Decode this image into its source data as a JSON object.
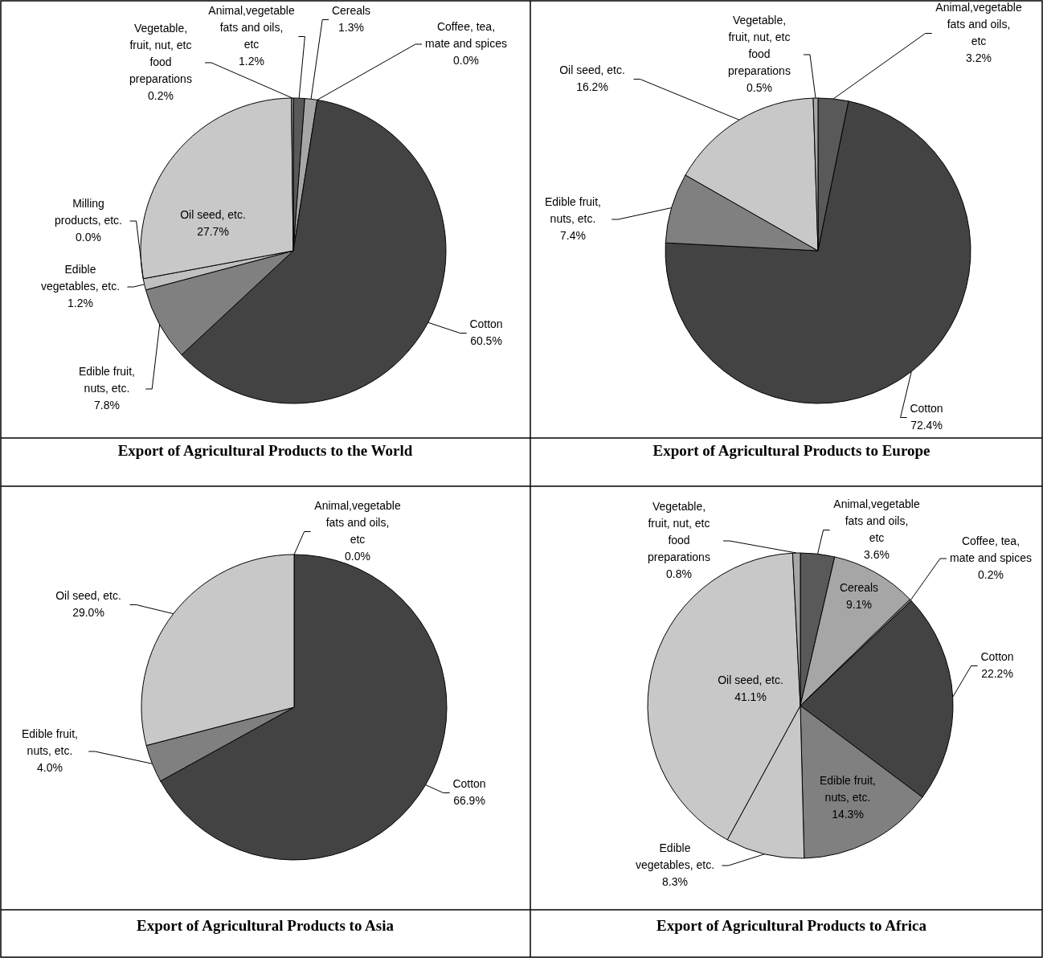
{
  "chart_data": [
    {
      "type": "pie",
      "title": "Export of Agricultural Products to the World",
      "categories": [
        "Animal,vegetable fats and oils, etc",
        "Cereals",
        "Coffee, tea, mate and spices",
        "Cotton",
        "Edible fruit, nuts, etc.",
        "Edible vegetables, etc.",
        "Milling products, etc.",
        "Oil seed, etc.",
        "Vegetable, fruit, nut, etc food preparations"
      ],
      "values": [
        1.2,
        1.3,
        0.0,
        60.5,
        7.8,
        1.2,
        0.0,
        27.7,
        0.2
      ],
      "colors": [
        "#595959",
        "#a6a6a6",
        "#7f7f7f",
        "#434343",
        "#808080",
        "#c0c0c0",
        "#d9d9d9",
        "#c8c8c8",
        "#a6a6a6"
      ],
      "value_labels": [
        "1.2%",
        "1.3%",
        "0.0%",
        "60.5%",
        "7.8%",
        "1.2%",
        "0.0%",
        "27.7%",
        "0.2%"
      ]
    },
    {
      "type": "pie",
      "title": "Export of Agricultural Products to Europe",
      "categories": [
        "Animal,vegetable fats and oils, etc",
        "Cotton",
        "Edible fruit, nuts, etc.",
        "Oil seed, etc.",
        "Vegetable, fruit, nut, etc food preparations"
      ],
      "values": [
        3.2,
        72.4,
        7.4,
        16.2,
        0.5
      ],
      "colors": [
        "#595959",
        "#434343",
        "#808080",
        "#c8c8c8",
        "#a6a6a6"
      ],
      "value_labels": [
        "3.2%",
        "72.4%",
        "7.4%",
        "16.2%",
        "0.5%"
      ]
    },
    {
      "type": "pie",
      "title": "Export of Agricultural Products to Asia",
      "categories": [
        "Animal,vegetable fats and oils, etc",
        "Cotton",
        "Edible fruit, nuts, etc.",
        "Oil seed, etc."
      ],
      "values": [
        0.0,
        66.9,
        4.0,
        29.0
      ],
      "colors": [
        "#595959",
        "#434343",
        "#808080",
        "#c8c8c8"
      ],
      "value_labels": [
        "0.0%",
        "66.9%",
        "4.0%",
        "29.0%"
      ]
    },
    {
      "type": "pie",
      "title": "Export of Agricultural Products to Africa",
      "categories": [
        "Animal,vegetable fats and oils, etc",
        "Cereals",
        "Coffee, tea, mate and spices",
        "Cotton",
        "Edible fruit, nuts, etc.",
        "Edible vegetables, etc.",
        "Oil seed, etc.",
        "Vegetable, fruit, nut, etc food preparations"
      ],
      "values": [
        3.6,
        9.1,
        0.2,
        22.2,
        14.3,
        8.3,
        41.1,
        0.8
      ],
      "colors": [
        "#595959",
        "#a6a6a6",
        "#7f7f7f",
        "#434343",
        "#808080",
        "#c8c8c8",
        "#c8c8c8",
        "#a6a6a6"
      ],
      "value_labels": [
        "3.6%",
        "9.1%",
        "0.2%",
        "22.2%",
        "14.3%",
        "8.3%",
        "41.1%",
        "0.8%"
      ]
    }
  ]
}
